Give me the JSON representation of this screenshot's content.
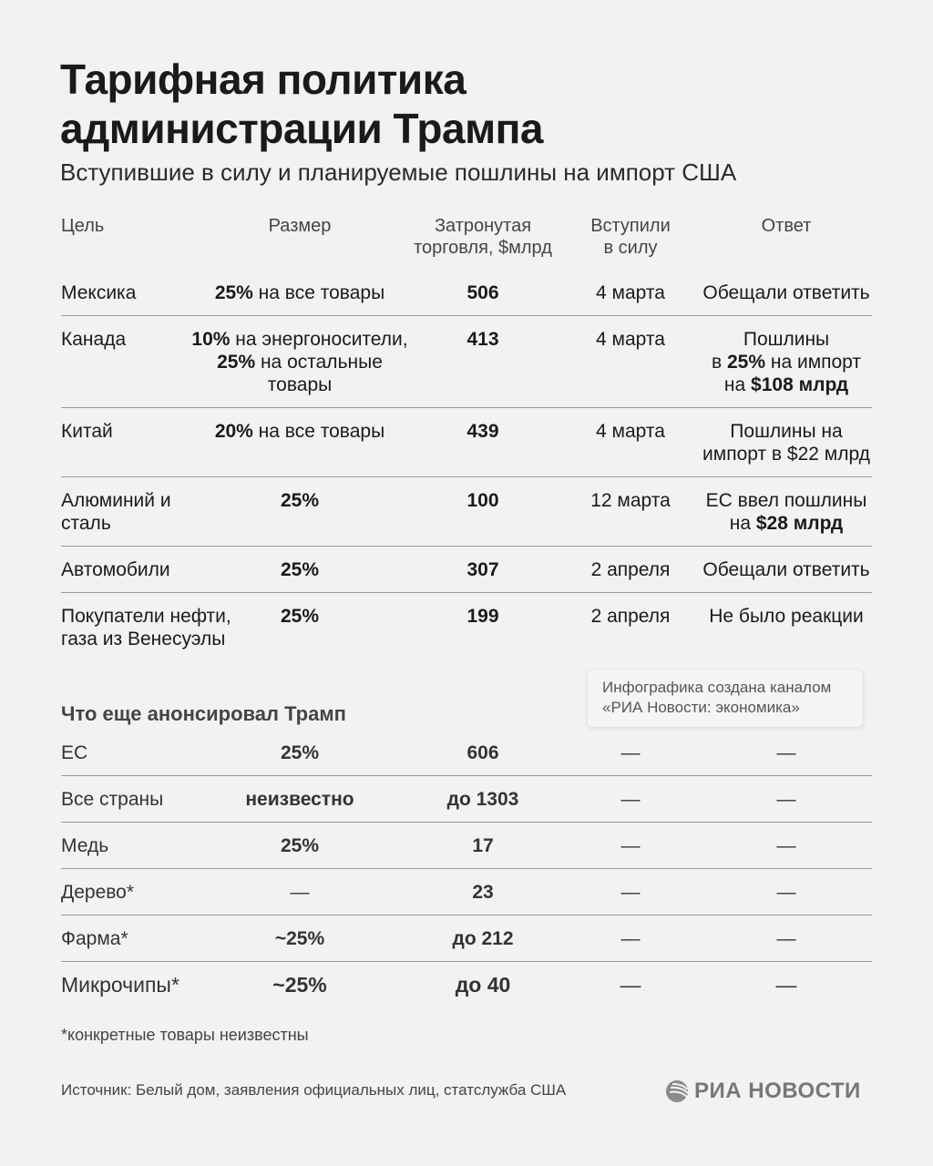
{
  "title": "Тарифная политика\nадминистрации Трампа",
  "subtitle": "Вступившие в силу и планируемые пошлины на импорт США",
  "headers": [
    "Цель",
    "Размер",
    "Затронутая\nторговля, $млрд",
    "Вступили\nв силу",
    "Ответ"
  ],
  "rows": [
    [
      [
        {
          "t": "Мексика"
        }
      ],
      [
        {
          "t": "25%",
          "b": true
        },
        {
          "t": " на все товары"
        }
      ],
      [
        {
          "t": "506",
          "b": true
        }
      ],
      [
        {
          "t": "4 марта"
        }
      ],
      [
        {
          "t": "Обещали ответить"
        }
      ]
    ],
    [
      [
        {
          "t": "Канада"
        }
      ],
      [
        {
          "t": "10%",
          "b": true
        },
        {
          "t": " на энергоносители,\n"
        },
        {
          "t": "25%",
          "b": true
        },
        {
          "t": " на остальные\nтовары"
        }
      ],
      [
        {
          "t": "413",
          "b": true
        }
      ],
      [
        {
          "t": "4 марта"
        }
      ],
      [
        {
          "t": "Пошлины\nв "
        },
        {
          "t": "25%",
          "b": true
        },
        {
          "t": " на импорт\nна "
        },
        {
          "t": "$108 млрд",
          "b": true
        }
      ]
    ],
    [
      [
        {
          "t": "Китай"
        }
      ],
      [
        {
          "t": "20%",
          "b": true
        },
        {
          "t": " на все товары"
        }
      ],
      [
        {
          "t": "439",
          "b": true
        }
      ],
      [
        {
          "t": "4 марта"
        }
      ],
      [
        {
          "t": "Пошлины на\nимпорт в $22 млрд"
        }
      ]
    ],
    [
      [
        {
          "t": "Алюминий и\nсталь"
        }
      ],
      [
        {
          "t": "25%",
          "b": true
        }
      ],
      [
        {
          "t": "100",
          "b": true
        }
      ],
      [
        {
          "t": "12 марта"
        }
      ],
      [
        {
          "t": "ЕС ввел пошлины\nна "
        },
        {
          "t": "$28 млрд",
          "b": true
        }
      ]
    ],
    [
      [
        {
          "t": "Автомобили"
        }
      ],
      [
        {
          "t": "25%",
          "b": true
        }
      ],
      [
        {
          "t": "307",
          "b": true
        }
      ],
      [
        {
          "t": "2 апреля"
        }
      ],
      [
        {
          "t": "Обещали ответить"
        }
      ]
    ],
    [
      [
        {
          "t": "Покупатели нефти,\nгаза из Венесуэлы"
        }
      ],
      [
        {
          "t": "25%",
          "b": true
        }
      ],
      [
        {
          "t": "199",
          "b": true
        }
      ],
      [
        {
          "t": "2 апреля"
        }
      ],
      [
        {
          "t": "Не было реакции"
        }
      ]
    ]
  ],
  "section2_title": "Что еще анонсировал Трамп",
  "rows2": [
    [
      [
        {
          "t": "ЕС"
        }
      ],
      [
        {
          "t": "25%",
          "b": true
        }
      ],
      [
        {
          "t": "606",
          "b": true
        }
      ],
      [
        {
          "t": "—"
        }
      ],
      [
        {
          "t": "—"
        }
      ]
    ],
    [
      [
        {
          "t": "Все страны"
        }
      ],
      [
        {
          "t": "неизвестно",
          "b": true
        }
      ],
      [
        {
          "t": "до 1303",
          "b": true
        }
      ],
      [
        {
          "t": "—"
        }
      ],
      [
        {
          "t": "—"
        }
      ]
    ],
    [
      [
        {
          "t": "Медь"
        }
      ],
      [
        {
          "t": "25%",
          "b": true
        }
      ],
      [
        {
          "t": "17",
          "b": true
        }
      ],
      [
        {
          "t": "—"
        }
      ],
      [
        {
          "t": "—"
        }
      ]
    ],
    [
      [
        {
          "t": "Дерево*"
        }
      ],
      [
        {
          "t": "—"
        }
      ],
      [
        {
          "t": "23",
          "b": true
        }
      ],
      [
        {
          "t": "—"
        }
      ],
      [
        {
          "t": "—"
        }
      ]
    ],
    [
      [
        {
          "t": "Фарма*"
        }
      ],
      [
        {
          "t": "~25%",
          "b": true
        }
      ],
      [
        {
          "t": "до 212",
          "b": true
        }
      ],
      [
        {
          "t": "—"
        }
      ],
      [
        {
          "t": "—"
        }
      ]
    ],
    [
      [
        {
          "t": "Микрочипы*"
        }
      ],
      [
        {
          "t": "~25%",
          "b": true
        }
      ],
      [
        {
          "t": "до 40",
          "b": true
        }
      ],
      [
        {
          "t": "—"
        }
      ],
      [
        {
          "t": "—"
        }
      ]
    ]
  ],
  "footnote": "*конкретные товары неизвестны",
  "source": "Источник: Белый дом, заявления официальных лиц, статслужба США",
  "watermark": "Инфографика создана каналом\n«РИА Новости: экономика»",
  "logo_text": "РИА НОВОСТИ"
}
